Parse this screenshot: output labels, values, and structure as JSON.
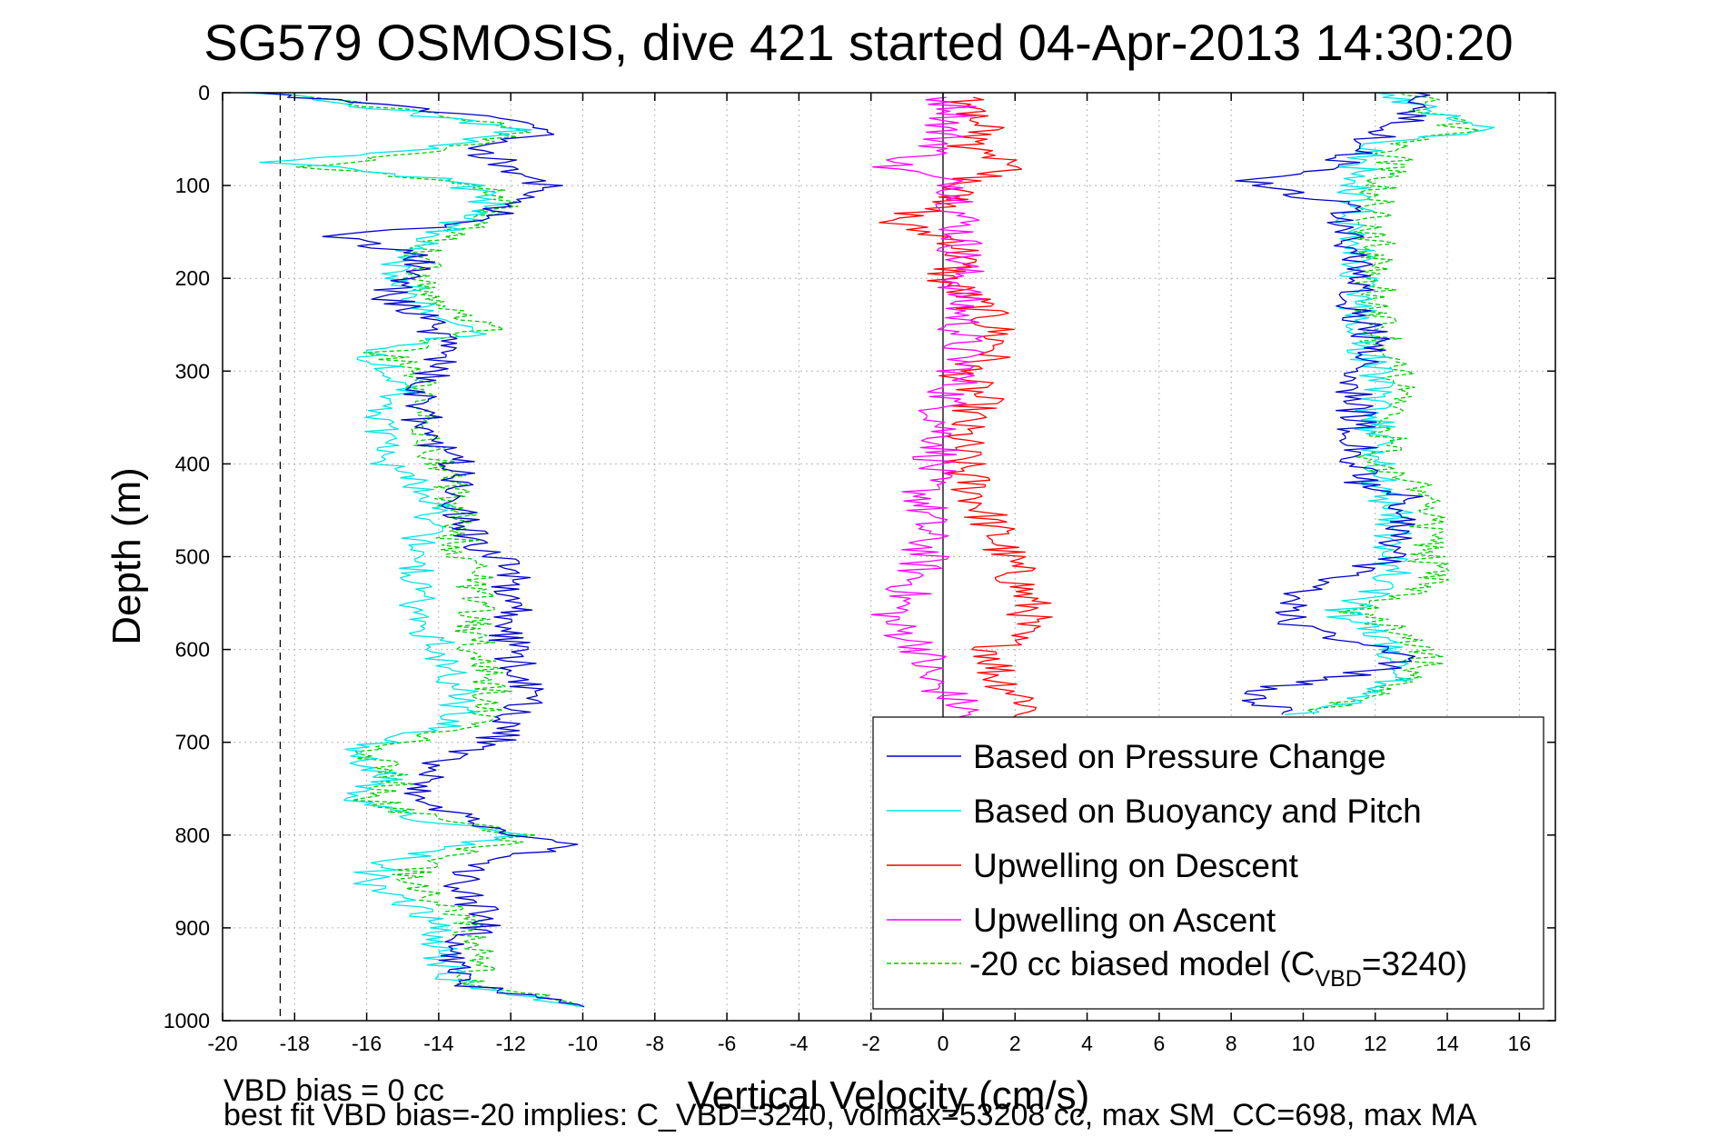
{
  "chart_data": {
    "type": "line",
    "title": "SG579 OSMOSIS, dive 421 started 04-Apr-2013 14:30:20",
    "xlabel": "Vertical Velocity (cm/s)",
    "ylabel": "Depth (m)",
    "xlim": [
      -20,
      17
    ],
    "ylim": [
      1000,
      0
    ],
    "y_reversed": true,
    "grid": true,
    "legend_position": "bottom-right",
    "x_ticks": [
      "-20",
      "-18",
      "-16",
      "-14",
      "-12",
      "-10",
      "-8",
      "-6",
      "-4",
      "-2",
      "0",
      "2",
      "4",
      "6",
      "8",
      "10",
      "12",
      "14",
      "16"
    ],
    "y_ticks": [
      "0",
      "100",
      "200",
      "300",
      "400",
      "500",
      "600",
      "700",
      "800",
      "900",
      "1000"
    ],
    "reference_lines": [
      {
        "kind": "vertical",
        "x": -18.4,
        "style": "dashed",
        "color": "#000000"
      },
      {
        "kind": "vertical",
        "x": 0,
        "style": "solid",
        "color": "#000000"
      }
    ],
    "legend": [
      {
        "label": "Based on Pressure Change",
        "color": "#0000cc",
        "dash": "solid"
      },
      {
        "label": "Based on Buoyancy and Pitch",
        "color": "#00e5e5",
        "dash": "solid"
      },
      {
        "label": "Upwelling on Descent",
        "color": "#ff0000",
        "dash": "solid"
      },
      {
        "label": "Upwelling on Ascent",
        "color": "#ff00ff",
        "dash": "solid"
      },
      {
        "label_main": "-20 cc biased model (C",
        "label_sub": "VBD",
        "label_tail": "=3240)",
        "color": "#00cc00",
        "dash": "dashed"
      }
    ],
    "series": [
      {
        "name": "Based on Pressure Change",
        "color": "#0000cc",
        "dash": "solid",
        "descent": {
          "depth": [
            0,
            20,
            40,
            60,
            80,
            100,
            120,
            140,
            155,
            175,
            200,
            220,
            240,
            260,
            290,
            320,
            360,
            400,
            440,
            480,
            500,
            520,
            560,
            600,
            640,
            680,
            700,
            720,
            760,
            790,
            810,
            830,
            860,
            890,
            920,
            960,
            985
          ],
          "velocity": [
            -19,
            -14,
            -10.5,
            -13,
            -12,
            -11,
            -12,
            -13,
            -17,
            -14.5,
            -15,
            -15.5,
            -14.5,
            -14,
            -14,
            -14.5,
            -14.5,
            -13.5,
            -13.5,
            -13,
            -12.5,
            -12,
            -12,
            -12,
            -11.5,
            -12,
            -12.5,
            -14,
            -14.5,
            -13,
            -10,
            -13,
            -13.5,
            -12.5,
            -13.5,
            -13.5,
            -10
          ]
        },
        "ascent": {
          "depth": [
            0,
            20,
            40,
            60,
            80,
            95,
            120,
            150,
            180,
            210,
            240,
            270,
            300,
            340,
            380,
            420,
            435,
            470,
            500,
            530,
            550,
            580,
            600,
            620,
            645,
            670
          ],
          "velocity": [
            13,
            13,
            12.5,
            11.5,
            11,
            8.5,
            11,
            11,
            11.5,
            11.5,
            11.5,
            12,
            11.5,
            11.5,
            11.5,
            11.5,
            13,
            12.5,
            12.5,
            10.5,
            9.5,
            10,
            12.5,
            12.5,
            8.5,
            9.5
          ]
        }
      },
      {
        "name": "Based on Buoyancy and Pitch",
        "color": "#00e5e5",
        "dash": "solid",
        "descent": {
          "depth": [
            0,
            20,
            40,
            60,
            75,
            95,
            120,
            150,
            175,
            200,
            230,
            255,
            280,
            310,
            350,
            400,
            440,
            480,
            520,
            560,
            600,
            640,
            680,
            710,
            740,
            760,
            780,
            800,
            830,
            850,
            880,
            920,
            960,
            985
          ],
          "velocity": [
            -19,
            -15,
            -12,
            -14,
            -18.5,
            -13.5,
            -12.5,
            -14,
            -15,
            -15,
            -14.5,
            -12.5,
            -16,
            -15,
            -15.5,
            -15.5,
            -14,
            -14.5,
            -14.5,
            -14.5,
            -14,
            -13.5,
            -13.5,
            -16.5,
            -15.5,
            -16.5,
            -15,
            -12,
            -15.5,
            -16,
            -14.5,
            -14,
            -13.5,
            -10
          ]
        },
        "ascent": {
          "depth": [
            0,
            20,
            40,
            55,
            80,
            110,
            150,
            200,
            250,
            300,
            350,
            400,
            450,
            500,
            530,
            560,
            600,
            640,
            670
          ],
          "velocity": [
            12.5,
            13.5,
            15,
            12,
            11.5,
            11.5,
            11.5,
            11.5,
            11.5,
            12,
            12,
            12,
            12.5,
            12.5,
            12.5,
            11,
            12.5,
            12.5,
            10
          ]
        }
      },
      {
        "name": "Upwelling on Descent",
        "color": "#ff0000",
        "dash": "solid",
        "descent": {
          "depth": [
            5,
            20,
            40,
            55,
            75,
            100,
            120,
            140,
            160,
            180,
            200,
            230,
            260,
            280,
            300,
            330,
            360,
            400,
            440,
            480,
            520,
            560,
            600,
            630,
            660,
            690
          ],
          "velocity": [
            0.5,
            1,
            1.5,
            0.5,
            2,
            0.5,
            0,
            -1.5,
            0.5,
            0.5,
            0,
            1,
            1.5,
            1.5,
            0.5,
            1,
            0.5,
            0.5,
            1,
            1.5,
            2,
            2.5,
            1.5,
            1.5,
            2.5,
            2
          ]
        }
      },
      {
        "name": "Upwelling on Ascent",
        "color": "#ff00ff",
        "dash": "solid",
        "ascent": {
          "depth": [
            5,
            20,
            40,
            60,
            80,
            100,
            120,
            150,
            180,
            210,
            240,
            270,
            300,
            340,
            380,
            420,
            460,
            500,
            540,
            570,
            600,
            630,
            660,
            690
          ],
          "velocity": [
            0,
            0.5,
            0,
            0,
            -1.5,
            0.5,
            0.5,
            0.5,
            0.5,
            0.5,
            0.5,
            0.5,
            0.5,
            0,
            0,
            -0.5,
            -0.5,
            -0.5,
            -1,
            -1.5,
            -0.5,
            -0.5,
            0.5,
            1
          ]
        }
      },
      {
        "name": "-20 cc biased model (CVBD=3240)",
        "color": "#00cc00",
        "dash": "dashed",
        "descent": {
          "depth": [
            0,
            20,
            40,
            60,
            80,
            100,
            120,
            150,
            175,
            200,
            230,
            255,
            280,
            310,
            350,
            400,
            440,
            480,
            520,
            560,
            600,
            640,
            680,
            710,
            740,
            760,
            780,
            800,
            830,
            850,
            880,
            920,
            960,
            985
          ],
          "velocity": [
            -19,
            -14.5,
            -11.5,
            -13.5,
            -17.5,
            -13,
            -12,
            -13.5,
            -14.5,
            -14.5,
            -14,
            -12.5,
            -15.5,
            -14.5,
            -14.5,
            -14,
            -13.5,
            -13.5,
            -13,
            -13,
            -13,
            -12.5,
            -13,
            -16,
            -15,
            -16,
            -14.5,
            -11.5,
            -14.5,
            -15,
            -13.5,
            -13,
            -13,
            -10
          ]
        },
        "ascent": {
          "depth": [
            0,
            20,
            40,
            55,
            80,
            110,
            150,
            200,
            250,
            300,
            350,
            400,
            435,
            470,
            500,
            530,
            560,
            590,
            620,
            640,
            670
          ],
          "velocity": [
            13,
            13.5,
            14.5,
            12.5,
            12.5,
            12,
            12,
            12,
            12,
            12.5,
            12.5,
            12,
            13.5,
            13.5,
            13.5,
            13.5,
            11.5,
            13,
            13.5,
            12.5,
            10
          ]
        }
      }
    ],
    "annotations": [
      "VBD bias = 0 cc",
      "best fit VBD bias=-20 implies: C_VBD=3240, volmax=53208 cc, max SM_CC=698, max MA"
    ]
  }
}
